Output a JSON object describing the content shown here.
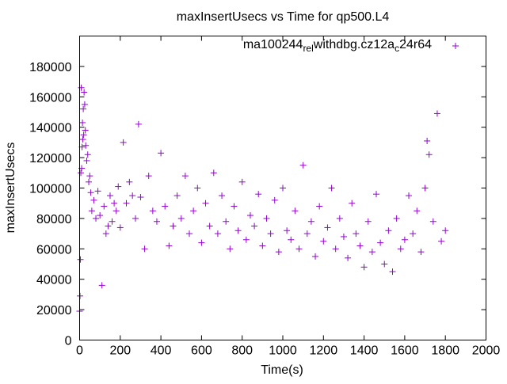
{
  "chart_data": {
    "type": "scatter",
    "title": "maxInsertUsecs vs Time for qp500.L4",
    "xlabel": "Time(s)",
    "ylabel": "maxInsertUsecs",
    "xlim": [
      0,
      2000
    ],
    "ylim": [
      0,
      200000
    ],
    "xticks": [
      0,
      200,
      400,
      600,
      800,
      1000,
      1200,
      1400,
      1600,
      1800,
      2000
    ],
    "yticks": [
      0,
      20000,
      40000,
      60000,
      80000,
      100000,
      120000,
      140000,
      160000,
      180000
    ],
    "grid": false,
    "legend_position": "top-right",
    "series": [
      {
        "name": "ma100244_rel_withdbg.cz12a_c24r64",
        "legend_parts": [
          "ma100244",
          "rel",
          "withdbg.cz12a",
          "c",
          "24r64"
        ],
        "color": "#9400d3",
        "marker": "plus",
        "x": [
          0,
          2,
          4,
          6,
          8,
          10,
          12,
          14,
          16,
          18,
          20,
          22,
          25,
          28,
          30,
          35,
          40,
          45,
          50,
          55,
          60,
          70,
          80,
          90,
          100,
          110,
          120,
          130,
          140,
          150,
          160,
          170,
          180,
          190,
          200,
          215,
          230,
          245,
          260,
          275,
          290,
          300,
          320,
          340,
          360,
          380,
          400,
          420,
          440,
          460,
          480,
          500,
          520,
          540,
          560,
          580,
          600,
          620,
          640,
          660,
          680,
          700,
          720,
          740,
          760,
          780,
          800,
          820,
          840,
          860,
          880,
          900,
          920,
          940,
          960,
          980,
          1000,
          1020,
          1040,
          1060,
          1080,
          1100,
          1120,
          1140,
          1160,
          1180,
          1200,
          1220,
          1240,
          1260,
          1280,
          1300,
          1320,
          1340,
          1360,
          1380,
          1400,
          1420,
          1440,
          1460,
          1480,
          1500,
          1520,
          1540,
          1560,
          1580,
          1600,
          1620,
          1640,
          1660,
          1680,
          1700,
          1710,
          1720,
          1740,
          1760,
          1780,
          1800
        ],
        "y": [
          19000,
          29000,
          53000,
          110000,
          166000,
          113000,
          127000,
          143000,
          132000,
          152000,
          135000,
          163000,
          155000,
          138000,
          128000,
          118000,
          122000,
          104000,
          108000,
          97000,
          85000,
          92000,
          80000,
          98000,
          82000,
          36000,
          88000,
          70000,
          75000,
          95000,
          78000,
          90000,
          85000,
          101000,
          74000,
          130000,
          90000,
          104000,
          95000,
          80000,
          142000,
          94000,
          60000,
          108000,
          85000,
          78000,
          123000,
          88000,
          62000,
          75000,
          95000,
          80000,
          108000,
          70000,
          85000,
          100000,
          64000,
          90000,
          75000,
          110000,
          70000,
          95000,
          78000,
          60000,
          88000,
          72000,
          104000,
          66000,
          82000,
          75000,
          96000,
          62000,
          80000,
          70000,
          92000,
          58000,
          100000,
          72000,
          66000,
          85000,
          60000,
          115000,
          70000,
          78000,
          55000,
          88000,
          65000,
          74000,
          100000,
          60000,
          80000,
          68000,
          54000,
          90000,
          70000,
          62000,
          48000,
          78000,
          58000,
          96000,
          64000,
          50000,
          72000,
          45000,
          80000,
          60000,
          66000,
          95000,
          70000,
          85000,
          58000,
          100000,
          131000,
          122000,
          78000,
          149000,
          65000,
          72000
        ]
      }
    ]
  }
}
